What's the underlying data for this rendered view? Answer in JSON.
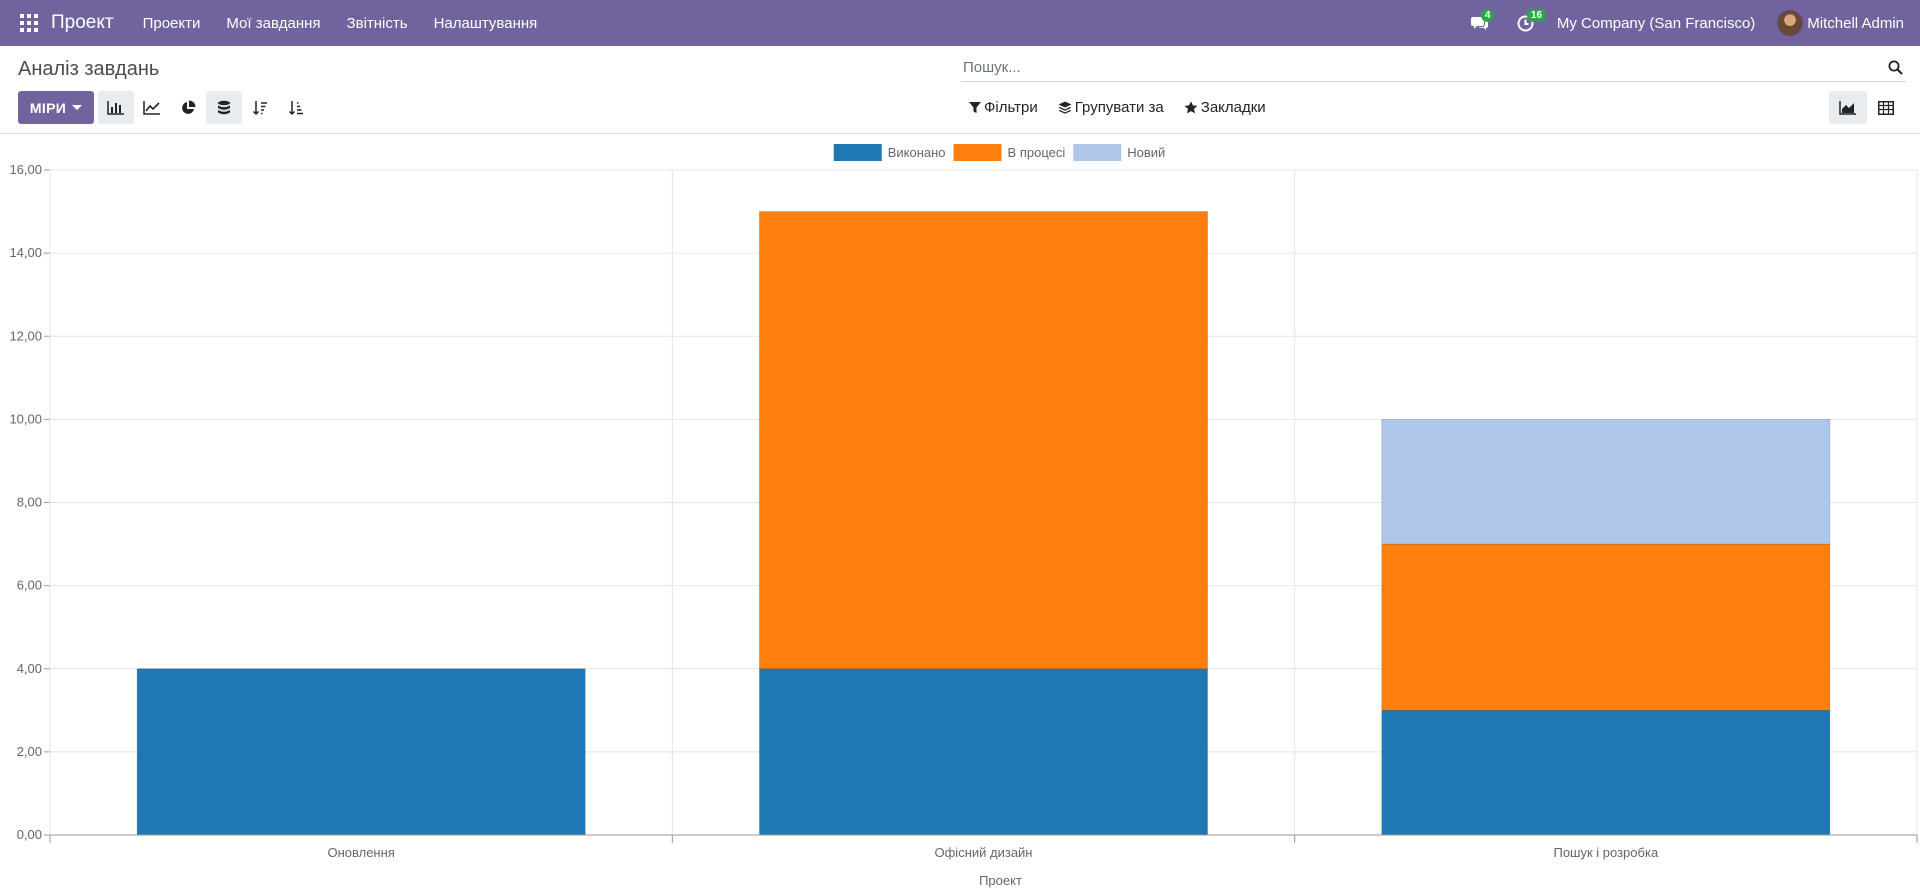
{
  "navbar": {
    "brand": "Проект",
    "menu": [
      "Проекти",
      "Мої завдання",
      "Звітність",
      "Налаштування"
    ],
    "messages_count": "4",
    "activities_count": "16",
    "company": "My Company (San Francisco)",
    "user": "Mitchell Admin",
    "bg_color": "#71639e"
  },
  "control_panel": {
    "title": "Аналіз завдань",
    "search_placeholder": "Пошук...",
    "measures_label": "МІРИ",
    "filters_label": "Фільтри",
    "group_by_label": "Групувати за",
    "favorites_label": "Закладки",
    "chart_tools": [
      "bar-chart-icon",
      "line-chart-icon",
      "pie-chart-icon",
      "stacked-icon",
      "sort-descending-icon",
      "sort-ascending-icon"
    ],
    "views": [
      "graph-view-icon",
      "pivot-view-icon"
    ]
  },
  "chart_data": {
    "type": "bar",
    "stacked": true,
    "categories": [
      "Оновлення",
      "Офісний дизайн",
      "Пошук і розробка"
    ],
    "series": [
      {
        "name": "Виконано",
        "color": "#1f77b4",
        "values": [
          4,
          4,
          3
        ]
      },
      {
        "name": "В процесі",
        "color": "#ff7f0e",
        "values": [
          0,
          11,
          4
        ]
      },
      {
        "name": "Новий",
        "color": "#aec7e8",
        "values": [
          0,
          0,
          3
        ]
      }
    ],
    "xlabel": "Проект",
    "ylabel": "",
    "ylim": [
      0,
      16
    ],
    "yticks": [
      "0,00",
      "2,00",
      "4,00",
      "6,00",
      "8,00",
      "10,00",
      "12,00",
      "14,00",
      "16,00"
    ],
    "grid": true,
    "legend": "top-center"
  }
}
